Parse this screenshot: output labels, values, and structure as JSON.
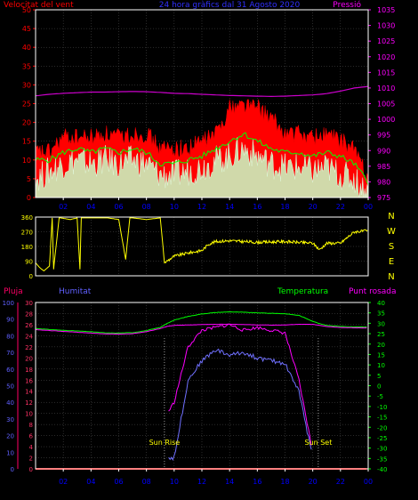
{
  "header": {
    "left": "Velocitat del vent",
    "center": "24 hora gràfics dal  31 Agosto 2020",
    "right": "Pressió"
  },
  "colors": {
    "gust": "#ff0000",
    "avg_wind": "#00ff00",
    "wind_white": "#ffffff",
    "pressure": "#cc00cc",
    "direction": "#ffff00",
    "humidity": "#7070ff",
    "temperature": "#00ff00",
    "dewpoint": "#ff00ff",
    "rain": "#ff0000",
    "wind_axis": "#ff0000",
    "pressure_axis": "#ff00ff",
    "frame": "#ffffff",
    "grid": "#555555",
    "time_labels": "#0000ff"
  },
  "x_ticks": [
    "02",
    "04",
    "06",
    "08",
    "10",
    "12",
    "14",
    "16",
    "18",
    "20",
    "22",
    "00"
  ],
  "chart_data": [
    {
      "type": "line",
      "title": "24 hora gràfics dal  31 Agosto 2020",
      "ylabel_left": "Velocitat del vent",
      "ylabel_right": "Pressió",
      "ylim_left": [
        0,
        50
      ],
      "ylim_right": [
        975,
        1035
      ],
      "yticks_left": [
        "0",
        "5",
        "10",
        "15",
        "20",
        "25",
        "30",
        "35",
        "40",
        "45",
        "50"
      ],
      "yticks_right": [
        "975",
        "980",
        "985",
        "990",
        "995",
        "1000",
        "1005",
        "1010",
        "1015",
        "1020",
        "1025",
        "1030",
        "1035"
      ],
      "hours": [
        0,
        1,
        2,
        3,
        4,
        5,
        6,
        7,
        8,
        9,
        10,
        11,
        12,
        13,
        14,
        15,
        16,
        17,
        18,
        19,
        20,
        21,
        22,
        23,
        24
      ],
      "series": [
        {
          "name": "Pressió",
          "axis": "right",
          "values": [
            1007.5,
            1008,
            1008.3,
            1008.5,
            1008.7,
            1008.7,
            1008.8,
            1008.9,
            1008.8,
            1008.6,
            1008.3,
            1008.2,
            1008,
            1007.8,
            1007.6,
            1007.5,
            1007.4,
            1007.3,
            1007.4,
            1007.6,
            1007.8,
            1008.2,
            1009,
            1010,
            1010.5
          ]
        },
        {
          "name": "",
          "axis": "left",
          "values": [
            12,
            12,
            16,
            16,
            16,
            17,
            16,
            17,
            17,
            13,
            13,
            13,
            15,
            17,
            24,
            25,
            24,
            21,
            17,
            17,
            16,
            17,
            15,
            13,
            5
          ]
        },
        {
          "name": "",
          "axis": "left",
          "values": [
            10,
            10,
            12,
            13,
            12,
            13,
            12,
            13,
            12,
            9,
            9,
            10,
            11,
            13,
            15,
            17,
            15,
            13,
            12,
            12,
            11,
            12,
            11,
            9,
            4
          ]
        },
        {
          "name": "",
          "axis": "left",
          "values": [
            5,
            7,
            9,
            10,
            9,
            10,
            9,
            10,
            9,
            6,
            6,
            7,
            8,
            10,
            11,
            13,
            11,
            9,
            8,
            8,
            7,
            8,
            6,
            5,
            1
          ]
        }
      ]
    },
    {
      "type": "line",
      "name": "wind direction",
      "ylim": [
        0,
        360
      ],
      "yticks": [
        "0",
        "90",
        "180",
        "270",
        "360"
      ],
      "right_labels": [
        "N",
        "W",
        "S",
        "E",
        "N"
      ],
      "hours": [
        0,
        0.3,
        0.6,
        1,
        1.2,
        1.3,
        1.7,
        1.8,
        2.5,
        3,
        3.2,
        3.3,
        4.5,
        5,
        5.2,
        6,
        6.5,
        6.8,
        7,
        8,
        9,
        9.3,
        10,
        11,
        12,
        12.5,
        13,
        14,
        16,
        18,
        20,
        20.5,
        21,
        22,
        23,
        24
      ],
      "values": [
        80,
        50,
        30,
        60,
        355,
        40,
        355,
        355,
        345,
        355,
        40,
        355,
        355,
        355,
        355,
        345,
        100,
        355,
        355,
        345,
        355,
        80,
        120,
        140,
        155,
        195,
        210,
        215,
        205,
        210,
        200,
        160,
        200,
        200,
        270,
        275
      ]
    },
    {
      "type": "line",
      "ylabel_rain": "Pluja",
      "ylabel_hum": "Humitat",
      "ylabel_temp": "Temperatura",
      "ylabel_dew": "Punt rosada",
      "ylim_rain": [
        0,
        100
      ],
      "ylim_hum": [
        0,
        30
      ],
      "ylim_temp": [
        -40,
        40
      ],
      "yticks_rain": [
        "0",
        "10",
        "20",
        "30",
        "40",
        "50",
        "60",
        "70",
        "80",
        "90",
        "100"
      ],
      "yticks_hum": [
        "0",
        "2",
        "4",
        "6",
        "8",
        "10",
        "12",
        "14",
        "16",
        "18",
        "20",
        "22",
        "24",
        "26",
        "28",
        "30"
      ],
      "yticks_temp": [
        "-40",
        "-35",
        "-30",
        "-25",
        "-20",
        "-15",
        "-10",
        "-5",
        "0",
        "5",
        "10",
        "15",
        "20",
        "25",
        "30",
        "35",
        "40"
      ],
      "hours": [
        0,
        1,
        2,
        3,
        4,
        5,
        6,
        7,
        8,
        9,
        9.5,
        10,
        11,
        12,
        13,
        14,
        15,
        16,
        17,
        18,
        19,
        20,
        20.5,
        21,
        22,
        23,
        24
      ],
      "series": [
        {
          "name": "Temperatura",
          "axis": "temp",
          "values": [
            27.5,
            27,
            26.6,
            26.3,
            25.9,
            25.4,
            25.3,
            25.5,
            26.5,
            28,
            30,
            31.5,
            33.3,
            34.5,
            35.2,
            35.5,
            35.3,
            35,
            34.8,
            34.6,
            33.8,
            31,
            29.8,
            29,
            28.5,
            28.2,
            28.2
          ]
        },
        {
          "name": "",
          "axis": "temp",
          "values": [
            27,
            26.5,
            26.1,
            25.7,
            25.3,
            24.9,
            24.8,
            25,
            26,
            27.5,
            28.5,
            29,
            29.2,
            29.4,
            29.5,
            29.6,
            29.4,
            29.2,
            29.1,
            29.2,
            29.5,
            29.5,
            29,
            28.5,
            28,
            27.8,
            27.8
          ]
        },
        {
          "name": "Punt rosada",
          "axis": "hum",
          "values": [
            null,
            null,
            null,
            null,
            null,
            null,
            null,
            null,
            null,
            null,
            10,
            12,
            22,
            25,
            25.5,
            26,
            25,
            25.5,
            25,
            24.5,
            16,
            3,
            null,
            null,
            null,
            null,
            null
          ]
        },
        {
          "name": "Humitat",
          "axis": "hum",
          "values": [
            null,
            null,
            null,
            null,
            null,
            null,
            null,
            null,
            null,
            null,
            2,
            2,
            16,
            19.5,
            21.5,
            20.5,
            21,
            20,
            19.5,
            19,
            14,
            2,
            null,
            null,
            null,
            null,
            null
          ]
        },
        {
          "name": "Pluja",
          "axis": "rain",
          "values": [
            0,
            0,
            0,
            0,
            0,
            0,
            0,
            0,
            0,
            0,
            0,
            0,
            0,
            0,
            0,
            0,
            0,
            0,
            0,
            0,
            0,
            0,
            0,
            0,
            0,
            0,
            0
          ]
        }
      ],
      "annotations": [
        {
          "text": "Sun Rise",
          "hour": 9.3
        },
        {
          "text": "Sun Set",
          "hour": 20.4
        }
      ]
    }
  ]
}
